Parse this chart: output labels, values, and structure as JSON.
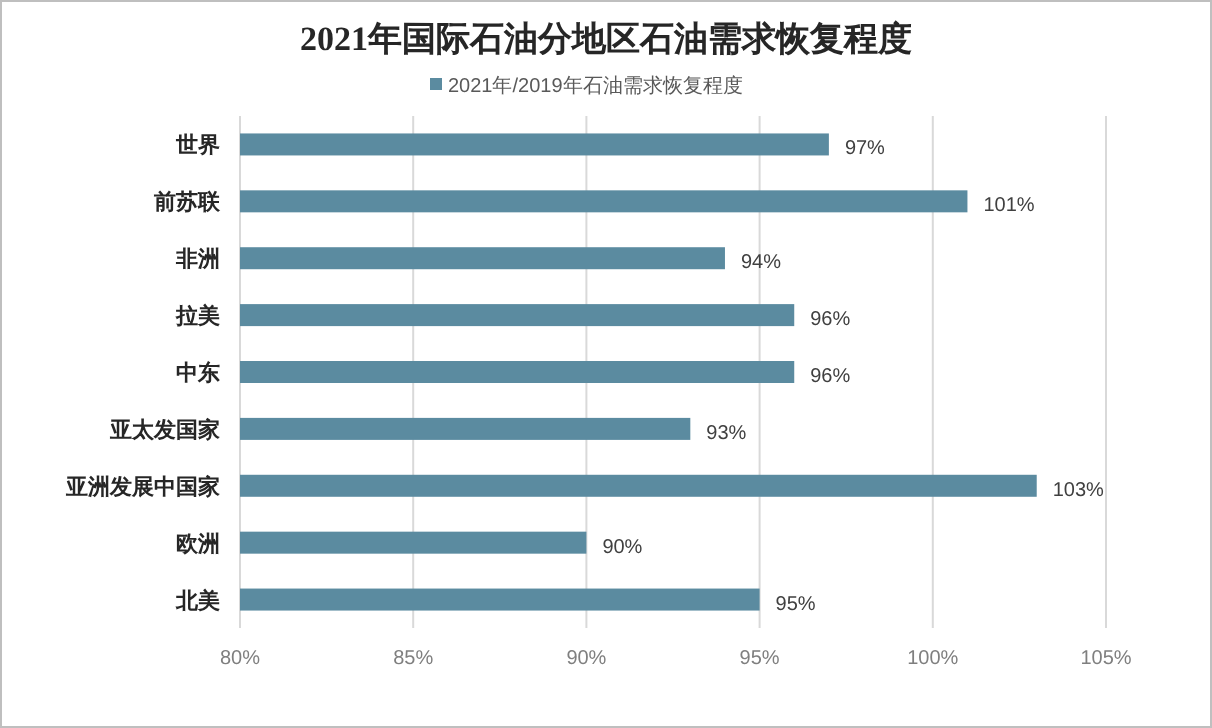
{
  "chart_data": {
    "type": "bar",
    "orientation": "horizontal",
    "title": "2021年国际石油分地区石油需求恢复程度",
    "categories": [
      "世界",
      "前苏联",
      "非洲",
      "拉美",
      "中东",
      "亚太发国家",
      "亚洲发展中国家",
      "欧洲",
      "北美"
    ],
    "series": [
      {
        "name": "2021年/2019年石油需求恢复程度",
        "color": "#5b8ba0",
        "values": [
          97,
          101,
          94,
          96,
          96,
          93,
          103,
          90,
          95
        ],
        "value_labels": [
          "97%",
          "101%",
          "94%",
          "96%",
          "96%",
          "93%",
          "103%",
          "90%",
          "95%"
        ]
      }
    ],
    "xlim": [
      80,
      105
    ],
    "xticks": [
      {
        "value": 80,
        "label": "80%"
      },
      {
        "value": 85,
        "label": "85%"
      },
      {
        "value": 90,
        "label": "90%"
      },
      {
        "value": 95,
        "label": "95%"
      },
      {
        "value": 100,
        "label": "100%"
      },
      {
        "value": 105,
        "label": "105%"
      }
    ],
    "grid": "x",
    "legend": "top"
  }
}
